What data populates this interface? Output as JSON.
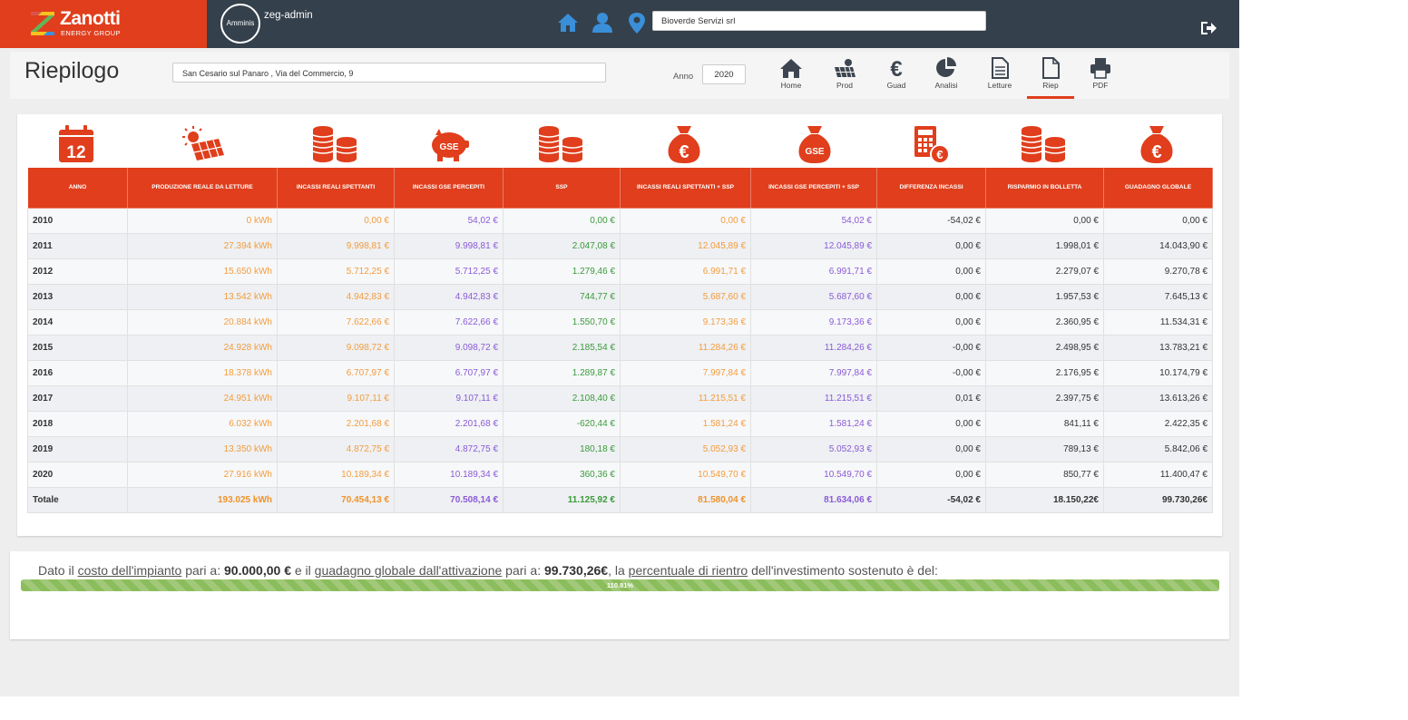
{
  "brand": {
    "name": "Zanotti",
    "sub": "ENERGY GROUP"
  },
  "user": {
    "avatar_text": "Amminis",
    "name": "zeg-admin"
  },
  "nav_icons": [
    "home-icon",
    "user-icon",
    "map-marker-icon"
  ],
  "client_select": {
    "value": "Bioverde Servizi srl"
  },
  "header": {
    "title": "Riepilogo",
    "address": "San Cesario sul Panaro , Via del Commercio, 9",
    "anno_label": "Anno",
    "anno_value": "2020"
  },
  "toolbar": {
    "home": "Home",
    "prod": "Prod",
    "guad": "Guad",
    "analisi": "Analisi",
    "letture": "Letture",
    "riep": "Riep",
    "pdf": "PDF"
  },
  "table": {
    "headers": [
      "ANNO",
      "PRODUZIONE REALE DA LETTURE",
      "INCASSI REALI SPETTANTI",
      "INCASSI GSE PERCEPITI",
      "SSP",
      "INCASSI REALI SPETTANTI + SSP",
      "INCASSI GSE PERCEPITI + SSP",
      "DIFFERENZA INCASSI",
      "RISPARMIO IN BOLLETTA",
      "GUADAGNO GLOBALE"
    ],
    "rows": [
      [
        "2010",
        "0 kWh",
        "0,00 €",
        "54,02 €",
        "0,00 €",
        "0,00 €",
        "54,02 €",
        "-54,02 €",
        "0,00 €",
        "0,00 €"
      ],
      [
        "2011",
        "27.394 kWh",
        "9.998,81 €",
        "9.998,81 €",
        "2.047,08 €",
        "12.045,89 €",
        "12.045,89 €",
        "0,00 €",
        "1.998,01 €",
        "14.043,90 €"
      ],
      [
        "2012",
        "15.650 kWh",
        "5.712,25 €",
        "5.712,25 €",
        "1.279,46 €",
        "6.991,71 €",
        "6.991,71 €",
        "0,00 €",
        "2.279,07 €",
        "9.270,78 €"
      ],
      [
        "2013",
        "13.542 kWh",
        "4.942,83 €",
        "4.942,83 €",
        "744,77 €",
        "5.687,60 €",
        "5.687,60 €",
        "0,00 €",
        "1.957,53 €",
        "7.645,13 €"
      ],
      [
        "2014",
        "20.884 kWh",
        "7.622,66 €",
        "7.622,66 €",
        "1.550,70 €",
        "9.173,36 €",
        "9.173,36 €",
        "0,00 €",
        "2.360,95 €",
        "11.534,31 €"
      ],
      [
        "2015",
        "24.928 kWh",
        "9.098,72 €",
        "9.098,72 €",
        "2.185,54 €",
        "11.284,26 €",
        "11.284,26 €",
        "-0,00 €",
        "2.498,95 €",
        "13.783,21 €"
      ],
      [
        "2016",
        "18.378 kWh",
        "6.707,97 €",
        "6.707,97 €",
        "1.289,87 €",
        "7.997,84 €",
        "7.997,84 €",
        "-0,00 €",
        "2.176,95 €",
        "10.174,79 €"
      ],
      [
        "2017",
        "24.951 kWh",
        "9.107,11 €",
        "9.107,11 €",
        "2.108,40 €",
        "11.215,51 €",
        "11.215,51 €",
        "0,01 €",
        "2.397,75 €",
        "13.613,26 €"
      ],
      [
        "2018",
        "6.032 kWh",
        "2.201,68 €",
        "2.201,68 €",
        "-620,44 €",
        "1.581,24 €",
        "1.581,24 €",
        "0,00 €",
        "841,11 €",
        "2.422,35 €"
      ],
      [
        "2019",
        "13.350 kWh",
        "4.872,75 €",
        "4.872,75 €",
        "180,18 €",
        "5.052,93 €",
        "5.052,93 €",
        "0,00 €",
        "789,13 €",
        "5.842,06 €"
      ],
      [
        "2020",
        "27.916 kWh",
        "10.189,34 €",
        "10.189,34 €",
        "360,36 €",
        "10.549,70 €",
        "10.549,70 €",
        "0,00 €",
        "850,77 €",
        "11.400,47 €"
      ]
    ],
    "total": [
      "Totale",
      "193.025 kWh",
      "70.454,13 €",
      "70.508,14 €",
      "11.125,92 €",
      "81.580,04 €",
      "81.634,06 €",
      "-54,02 €",
      "18.150,22€",
      "99.730,26€"
    ],
    "column_colors": [
      "#333333",
      "#f39c3c",
      "#f39c3c",
      "#8b5bd6",
      "#3c9a3c",
      "#f39c3c",
      "#8b5bd6",
      "#333333",
      "#333333",
      "#333333"
    ],
    "calendar_icon_text": "12",
    "gse_icon_text": "GSE"
  },
  "summary": {
    "part1": "Dato il ",
    "link1": "costo dell'impianto",
    "part2": " pari a: ",
    "cost": "90.000,00 €",
    "part3": " e il ",
    "link2": "guadagno globale dall'attivazione",
    "part4": " pari a: ",
    "gain": "99.730,26€",
    "part5": ", la ",
    "link3": "percentuale di rientro",
    "part6": " dell'investimento sostenuto è del:",
    "progress_label": "110.81%",
    "progress_value": 110.81
  },
  "colors": {
    "accent": "#e03e1c",
    "navbar": "#34404b",
    "nav_icon": "#3a8fd9",
    "progress": "#8cbd5c"
  }
}
